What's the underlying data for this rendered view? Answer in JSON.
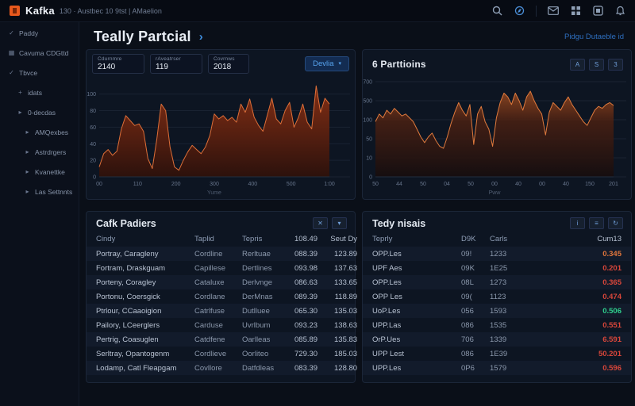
{
  "topbar": {
    "brand": "Kafka",
    "meta": "130 · Austbec 10 9tst | AMaelion",
    "icons": [
      "search-icon",
      "compass-icon",
      "mail-icon",
      "grid-icon",
      "apps-icon",
      "bell-icon"
    ]
  },
  "sidebar": {
    "items": [
      {
        "icon": "✓",
        "label": "Paddy",
        "depth": 0
      },
      {
        "icon": "▦",
        "label": "Cavuma CDGttd",
        "depth": 0
      },
      {
        "icon": "✓",
        "label": "Tbvce",
        "depth": 0
      },
      {
        "icon": "+",
        "label": "idats",
        "depth": 1
      },
      {
        "icon": "▸",
        "label": "0-decdas",
        "depth": 1
      },
      {
        "icon": "▸",
        "label": "AMQexbes",
        "depth": 2
      },
      {
        "icon": "▸",
        "label": "Astrdrgers",
        "depth": 2
      },
      {
        "icon": "▸",
        "label": "Kvanettke",
        "depth": 2
      },
      {
        "icon": "▸",
        "label": "Las Settnnts",
        "depth": 2
      }
    ]
  },
  "header": {
    "title": "Teally Partcial",
    "chevron": "›",
    "link": "Pidgu Dutaeble id"
  },
  "throughput_panel": {
    "stats": [
      {
        "label": "Cdurnmre",
        "value": "2140"
      },
      {
        "label": "rAveatrser",
        "value": "119"
      },
      {
        "label": "Covrnws",
        "value": "2018"
      }
    ],
    "button": "Devlia",
    "button_caret": "▾"
  },
  "partitions_panel": {
    "title": "6 Parttioins",
    "buttons": [
      "A",
      "S",
      "3"
    ]
  },
  "left_table": {
    "title": "Cafk Padiers",
    "icons": [
      "✕",
      "▾"
    ],
    "columns": [
      "Cindy",
      "Taplid",
      "Tepris",
      "108.49",
      "Seut Dy"
    ],
    "rows": [
      [
        "Portray, Caragleny",
        "Cordline",
        "Rerltuae",
        "088.39",
        "123.89"
      ],
      [
        "Fortram, Draskguam",
        "Capillese",
        "Dertlines",
        "093.98",
        "137.63"
      ],
      [
        "Porteny, Coragley",
        "Cataluxe",
        "Derlvnge",
        "086.63",
        "133.65"
      ],
      [
        "Portonu, Coersgick",
        "Cordlane",
        "DerMnas",
        "089.39",
        "118.89"
      ],
      [
        "Ptrlour, CCaaoigion",
        "Catrlfuse",
        "Dutlluee",
        "065.30",
        "135.03"
      ],
      [
        "Pailory, LCeerglers",
        "Carduse",
        "Uvrlbum",
        "093.23",
        "138.63"
      ],
      [
        "Pertrig, Coasuglen",
        "Catdfene",
        "Oarlleas",
        "085.89",
        "135.83"
      ],
      [
        "Serltray, Opantogenm",
        "Cordlieve",
        "Oorliteo",
        "729.30",
        "185.03"
      ],
      [
        "Lodamp, Catl Fleapgam",
        "Covllore",
        "Datfdleas",
        "083.39",
        "128.80"
      ]
    ]
  },
  "right_table": {
    "title": "Tedy nisais",
    "icons": [
      "i",
      "≡",
      "↻"
    ],
    "columns": [
      "Teprly",
      "D9K",
      "Carls",
      "Cum13"
    ],
    "rows": [
      {
        "cells": [
          "OPP.Les",
          "09!",
          "1233",
          "0.345"
        ],
        "color": "orange"
      },
      {
        "cells": [
          "UPF Aes",
          "09K",
          "1E25",
          "0.201"
        ],
        "color": "red"
      },
      {
        "cells": [
          "OPP.Les",
          "08L",
          "1273",
          "0.365"
        ],
        "color": "red"
      },
      {
        "cells": [
          "OPP Les",
          "09(",
          "1123",
          "0.474"
        ],
        "color": "red"
      },
      {
        "cells": [
          "UoP.Les",
          "056",
          "1593",
          "0.506"
        ],
        "color": "green"
      },
      {
        "cells": [
          "UPP.Las",
          "086",
          "1535",
          "0.551"
        ],
        "color": "red"
      },
      {
        "cells": [
          "OrP.Ues",
          "706",
          "1339",
          "6.591"
        ],
        "color": "red"
      },
      {
        "cells": [
          "UPP Lest",
          "086",
          "1E39",
          "50.201"
        ],
        "color": "red"
      },
      {
        "cells": [
          "UPP.Les",
          "0P6",
          "1579",
          "0.596"
        ],
        "color": "red"
      }
    ]
  },
  "chart_data": [
    {
      "type": "area",
      "title": "",
      "xlabel": "Yume",
      "ylabel": "",
      "ylim": [
        0,
        115
      ],
      "yticks": [
        {
          "v": 100,
          "label": "100"
        },
        {
          "v": 80,
          "label": "80"
        },
        {
          "v": 60,
          "label": "60"
        },
        {
          "v": 40,
          "label": "40"
        },
        {
          "v": 20,
          "label": "20"
        },
        {
          "v": 0,
          "label": "0"
        }
      ],
      "xticks": [
        "00",
        "110",
        "200",
        "300",
        "400",
        "500",
        "1:00"
      ],
      "values": [
        12,
        28,
        33,
        26,
        31,
        58,
        74,
        68,
        62,
        64,
        55,
        22,
        10,
        45,
        88,
        80,
        36,
        12,
        8,
        20,
        30,
        38,
        33,
        28,
        36,
        50,
        76,
        70,
        74,
        68,
        72,
        66,
        88,
        78,
        94,
        72,
        62,
        55,
        75,
        95,
        70,
        64,
        80,
        90,
        60,
        72,
        88,
        66,
        58,
        110,
        78,
        95,
        88
      ],
      "stroke": "#dd6e38",
      "grad_top": "#8a3014",
      "grad_bottom": "#2e110b",
      "grad_top_opacity": 0.95,
      "grad_bottom_opacity": 0.95,
      "margin_left": 16,
      "margin_right": 32
    },
    {
      "type": "area",
      "title": "",
      "xlabel": "Pww",
      "ylabel": "",
      "ylim": [
        0,
        100
      ],
      "yticks": [
        {
          "v": 100,
          "label": "700"
        },
        {
          "v": 80,
          "label": "500"
        },
        {
          "v": 60,
          "label": "100"
        },
        {
          "v": 40,
          "label": "50"
        },
        {
          "v": 20,
          "label": "10"
        },
        {
          "v": 0,
          "label": "0"
        }
      ],
      "xticks": [
        "50",
        "44",
        "50",
        "04",
        "50",
        "00",
        "40",
        "00",
        "40",
        "150",
        "201"
      ],
      "values": [
        58,
        66,
        62,
        70,
        66,
        72,
        68,
        64,
        66,
        62,
        58,
        50,
        42,
        36,
        42,
        46,
        38,
        32,
        30,
        42,
        56,
        68,
        78,
        70,
        64,
        76,
        34,
        66,
        74,
        58,
        50,
        32,
        62,
        78,
        88,
        84,
        76,
        88,
        80,
        70,
        84,
        90,
        80,
        72,
        66,
        44,
        68,
        78,
        74,
        70,
        78,
        84,
        76,
        70,
        64,
        58,
        54,
        62,
        70,
        74,
        72,
        76,
        78,
        75
      ],
      "stroke": "#e07a3d",
      "grad_top": "#a24d1f",
      "grad_mid": "#4a2012",
      "grad_bottom": "#160d0e",
      "grad_top_opacity": 0.8,
      "grad_bottom_opacity": 0.9,
      "margin_left": 16,
      "margin_right": 22
    }
  ]
}
